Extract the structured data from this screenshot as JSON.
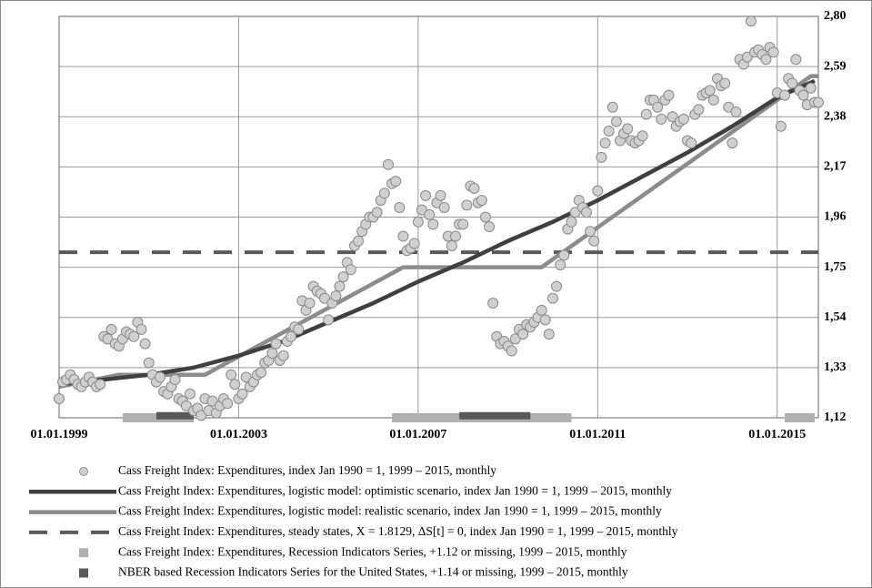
{
  "chart_data": {
    "type": "line",
    "xlim": [
      "01.01.1999",
      "01.12.2015"
    ],
    "xticks": [
      "01.01.1999",
      "01.01.2003",
      "01.01.2007",
      "01.01.2011",
      "01.01.2015"
    ],
    "ylim": [
      1.12,
      2.8
    ],
    "yticks": [
      {
        "value": 1.12,
        "label": "1,12"
      },
      {
        "value": 1.33,
        "label": "1,33"
      },
      {
        "value": 1.54,
        "label": "1,54"
      },
      {
        "value": 1.75,
        "label": "1,75"
      },
      {
        "value": 1.96,
        "label": "1,96"
      },
      {
        "value": 2.17,
        "label": "2,17"
      },
      {
        "value": 2.38,
        "label": "2,38"
      },
      {
        "value": 2.59,
        "label": "2,59"
      },
      {
        "value": 2.8,
        "label": "2,80"
      }
    ],
    "grid": true,
    "series": [
      {
        "name": "Cass Freight Index: Expenditures, index Jan 1990 = 1, 1999 – 2015, monthly",
        "kind": "scatter",
        "color": "#d0d0d0",
        "x": [
          "01.01.1999",
          "01.02.1999",
          "01.03.1999",
          "01.04.1999",
          "01.05.1999",
          "01.06.1999",
          "01.07.1999",
          "01.08.1999",
          "01.09.1999",
          "01.10.1999",
          "01.11.1999",
          "01.12.1999",
          "01.01.2000",
          "01.02.2000",
          "01.03.2000",
          "01.04.2000",
          "01.05.2000",
          "01.06.2000",
          "01.07.2000",
          "01.08.2000",
          "01.09.2000",
          "01.10.2000",
          "01.11.2000",
          "01.12.2000",
          "01.01.2001",
          "01.02.2001",
          "01.03.2001",
          "01.04.2001",
          "01.05.2001",
          "01.06.2001",
          "01.07.2001",
          "01.08.2001",
          "01.09.2001",
          "01.10.2001",
          "01.11.2001",
          "01.12.2001",
          "01.01.2002",
          "01.02.2002",
          "01.03.2002",
          "01.04.2002",
          "01.05.2002",
          "01.06.2002",
          "01.07.2002",
          "01.08.2002",
          "01.09.2002",
          "01.10.2002",
          "01.11.2002",
          "01.12.2002",
          "01.01.2003",
          "01.02.2003",
          "01.03.2003",
          "01.04.2003",
          "01.05.2003",
          "01.06.2003",
          "01.07.2003",
          "01.08.2003",
          "01.09.2003",
          "01.10.2003",
          "01.11.2003",
          "01.12.2003",
          "01.01.2004",
          "01.02.2004",
          "01.03.2004",
          "01.04.2004",
          "01.05.2004",
          "01.06.2004",
          "01.07.2004",
          "01.08.2004",
          "01.09.2004",
          "01.10.2004",
          "01.11.2004",
          "01.12.2004",
          "01.01.2005",
          "01.02.2005",
          "01.03.2005",
          "01.04.2005",
          "01.05.2005",
          "01.06.2005",
          "01.07.2005",
          "01.08.2005",
          "01.09.2005",
          "01.10.2005",
          "01.11.2005",
          "01.12.2005",
          "01.01.2006",
          "01.02.2006",
          "01.03.2006",
          "01.04.2006",
          "01.05.2006",
          "01.06.2006",
          "01.07.2006",
          "01.08.2006",
          "01.09.2006",
          "01.10.2006",
          "01.11.2006",
          "01.12.2006",
          "01.01.2007",
          "01.02.2007",
          "01.03.2007",
          "01.04.2007",
          "01.05.2007",
          "01.06.2007",
          "01.07.2007",
          "01.08.2007",
          "01.09.2007",
          "01.10.2007",
          "01.11.2007",
          "01.12.2007",
          "01.01.2008",
          "01.02.2008",
          "01.03.2008",
          "01.04.2008",
          "01.05.2008",
          "01.06.2008",
          "01.07.2008",
          "01.08.2008",
          "01.09.2008",
          "01.10.2008",
          "01.11.2008",
          "01.12.2008",
          "01.01.2009",
          "01.02.2009",
          "01.03.2009",
          "01.04.2009",
          "01.05.2009",
          "01.06.2009",
          "01.07.2009",
          "01.08.2009",
          "01.09.2009",
          "01.10.2009",
          "01.11.2009",
          "01.12.2009",
          "01.01.2010",
          "01.02.2010",
          "01.03.2010",
          "01.04.2010",
          "01.05.2010",
          "01.06.2010",
          "01.07.2010",
          "01.08.2010",
          "01.09.2010",
          "01.10.2010",
          "01.11.2010",
          "01.12.2010",
          "01.01.2011",
          "01.02.2011",
          "01.03.2011",
          "01.04.2011",
          "01.05.2011",
          "01.06.2011",
          "01.07.2011",
          "01.08.2011",
          "01.09.2011",
          "01.10.2011",
          "01.11.2011",
          "01.12.2011",
          "01.01.2012",
          "01.02.2012",
          "01.03.2012",
          "01.04.2012",
          "01.05.2012",
          "01.06.2012",
          "01.07.2012",
          "01.08.2012",
          "01.09.2012",
          "01.10.2012",
          "01.11.2012",
          "01.12.2012",
          "01.01.2013",
          "01.02.2013",
          "01.03.2013",
          "01.04.2013",
          "01.05.2013",
          "01.06.2013",
          "01.07.2013",
          "01.08.2013",
          "01.09.2013",
          "01.10.2013",
          "01.11.2013",
          "01.12.2013",
          "01.01.2014",
          "01.02.2014",
          "01.03.2014",
          "01.04.2014",
          "01.05.2014",
          "01.06.2014",
          "01.07.2014",
          "01.08.2014",
          "01.09.2014",
          "01.10.2014",
          "01.11.2014",
          "01.12.2014",
          "01.01.2015",
          "01.02.2015",
          "01.03.2015",
          "01.04.2015",
          "01.05.2015",
          "01.06.2015",
          "01.07.2015",
          "01.08.2015",
          "01.09.2015",
          "01.10.2015",
          "01.11.2015",
          "01.12.2015"
        ],
        "values": [
          1.2,
          1.27,
          1.28,
          1.3,
          1.28,
          1.26,
          1.25,
          1.27,
          1.29,
          1.27,
          1.25,
          1.26,
          1.46,
          1.45,
          1.49,
          1.43,
          1.42,
          1.45,
          1.48,
          1.47,
          1.46,
          1.52,
          1.49,
          1.43,
          1.35,
          1.3,
          1.27,
          1.29,
          1.23,
          1.22,
          1.25,
          1.28,
          1.2,
          1.19,
          1.17,
          1.22,
          1.15,
          1.16,
          1.13,
          1.2,
          1.15,
          1.19,
          1.14,
          1.17,
          1.2,
          1.18,
          1.3,
          1.26,
          1.2,
          1.22,
          1.29,
          1.25,
          1.27,
          1.3,
          1.31,
          1.35,
          1.36,
          1.39,
          1.43,
          1.36,
          1.38,
          1.44,
          1.46,
          1.5,
          1.49,
          1.61,
          1.57,
          1.6,
          1.67,
          1.65,
          1.64,
          1.62,
          1.53,
          1.6,
          1.63,
          1.67,
          1.71,
          1.77,
          1.74,
          1.84,
          1.86,
          1.9,
          1.93,
          1.96,
          1.96,
          1.98,
          2.03,
          2.06,
          2.18,
          2.1,
          2.11,
          2.0,
          1.88,
          1.82,
          1.83,
          1.85,
          1.94,
          1.99,
          2.05,
          1.97,
          1.93,
          2.02,
          2.05,
          2.0,
          1.88,
          1.84,
          1.88,
          1.93,
          1.93,
          2.01,
          2.09,
          2.08,
          2.02,
          2.03,
          1.96,
          1.92,
          1.6,
          1.46,
          1.43,
          1.44,
          1.42,
          1.4,
          1.45,
          1.49,
          1.47,
          1.51,
          1.5,
          1.52,
          1.54,
          1.57,
          1.53,
          1.47,
          1.62,
          1.67,
          1.76,
          1.8,
          1.91,
          1.94,
          1.98,
          2.03,
          2.0,
          1.98,
          1.9,
          1.86,
          2.07,
          2.21,
          2.27,
          2.32,
          2.42,
          2.36,
          2.28,
          2.31,
          2.33,
          2.28,
          2.27,
          2.28,
          2.3,
          2.39,
          2.45,
          2.45,
          2.42,
          2.37,
          2.45,
          2.47,
          2.38,
          2.34,
          2.36,
          2.37,
          2.28,
          2.27,
          2.39,
          2.41,
          2.47,
          2.48,
          2.49,
          2.45,
          2.54,
          2.51,
          2.52,
          2.42,
          2.27,
          2.4,
          2.62,
          2.6,
          2.63,
          2.78,
          2.65,
          2.66,
          2.64,
          2.62,
          2.67,
          2.65,
          2.48,
          2.34,
          2.47,
          2.54,
          2.52,
          2.62,
          2.49,
          2.47,
          2.43,
          2.5,
          2.44,
          2.44
        ]
      },
      {
        "name": "Cass Freight Index: Expenditures, logistic model: optimistic scenario, index Jan 1990 = 1, 1999 – 2015, monthly",
        "kind": "line",
        "color": "#3f3f3f",
        "x": [
          "01.01.1999",
          "01.01.2000",
          "01.01.2001",
          "01.01.2002",
          "01.01.2003",
          "01.01.2004",
          "01.01.2005",
          "01.01.2006",
          "01.01.2007",
          "01.01.2008",
          "01.01.2009",
          "01.01.2010",
          "01.01.2011",
          "01.01.2012",
          "01.01.2013",
          "01.01.2014",
          "01.01.2015",
          "01.11.2015"
        ],
        "values": [
          1.26,
          1.28,
          1.3,
          1.33,
          1.38,
          1.44,
          1.52,
          1.6,
          1.69,
          1.77,
          1.86,
          1.94,
          2.03,
          2.13,
          2.23,
          2.34,
          2.46,
          2.53
        ]
      },
      {
        "name": "Cass Freight Index: Expenditures, logistic model: realistic scenario, index Jan 1990 = 1, 1999 – 2015, monthly",
        "kind": "line",
        "color": "#8c8c8c",
        "x": [
          "01.01.1999",
          "01.05.2000",
          "01.04.2002",
          "01.09.2006",
          "01.10.2009",
          "01.10.2015",
          "01.12.2015"
        ],
        "values": [
          1.25,
          1.3,
          1.3,
          1.75,
          1.75,
          2.55,
          2.55
        ]
      },
      {
        "name": "Cass Freight Index: Expenditures, steady states, X = 1.8129, ΔS[t] = 0, index Jan 1990 = 1, 1999 – 2015, monthly",
        "kind": "dashed",
        "color": "#595959",
        "value": 1.8129
      },
      {
        "name": "Cass Freight Index: Expenditures, Recession Indicators Series, +1.12 or missing, 1999 – 2015, monthly",
        "kind": "band",
        "color": "#b0b0b0",
        "value": 1.12,
        "periods": [
          [
            "01.06.2000",
            "01.01.2002"
          ],
          [
            "01.06.2006",
            "01.06.2010"
          ],
          [
            "01.03.2015",
            "01.11.2015"
          ]
        ]
      },
      {
        "name": "NBER based Recession Indicators Series for the United States, +1.14 or  missing, 1999 – 2015, monthly",
        "kind": "band",
        "color": "#595959",
        "value": 1.14,
        "periods": [
          [
            "01.03.2001",
            "01.01.2002"
          ],
          [
            "01.12.2007",
            "01.07.2009"
          ]
        ]
      }
    ]
  }
}
